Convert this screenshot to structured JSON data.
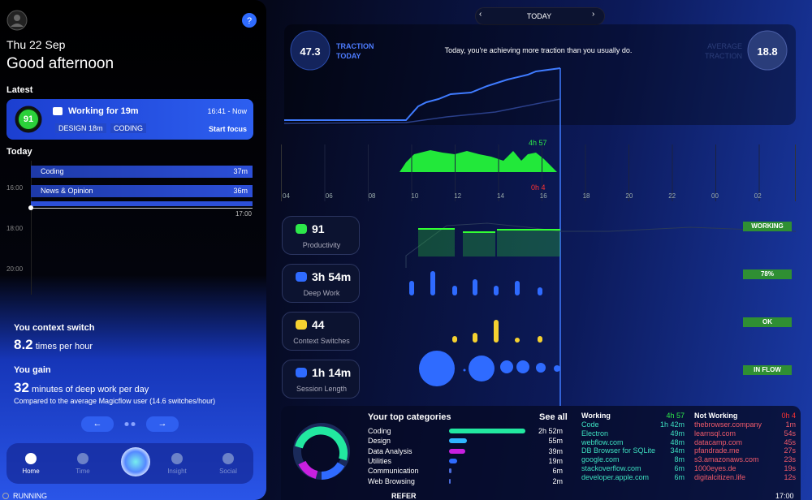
{
  "sidebar": {
    "date": "Thu 22 Sep",
    "greeting": "Good afternoon",
    "latest_heading": "Latest",
    "latest": {
      "score": "91",
      "title": "Working for 19m",
      "time": "16:41 - Now",
      "tags": [
        "DESIGN 18m",
        "CODING"
      ],
      "action": "Start focus"
    },
    "today_heading": "Today",
    "timeline": {
      "times": [
        "16:00",
        "18:00",
        "20:00"
      ],
      "now": "17:00",
      "blocks": [
        {
          "label": "Coding",
          "duration": "37m"
        },
        {
          "label": "News & Opinion",
          "duration": "36m"
        }
      ]
    },
    "insights": {
      "switch_heading": "You context switch",
      "switch_value": "8.2",
      "switch_unit": "times per hour",
      "gain_heading": "You gain",
      "gain_value": "32",
      "gain_unit": "minutes of deep work per day",
      "note": "Compared to the average Magicflow user (14.6 switches/hour)"
    },
    "nav": [
      "Home",
      "Time",
      "Insight",
      "Social"
    ],
    "status": "RUNNING"
  },
  "header": {
    "date_label": "TODAY"
  },
  "traction": {
    "today_value": "47.3",
    "today_label": "TRACTION TODAY",
    "message": "Today, you're achieving more traction than you usually do.",
    "average_label": "AVERAGE TRACTION",
    "average_value": "18.8"
  },
  "hours": {
    "labels": [
      "04",
      "06",
      "08",
      "10",
      "12",
      "14",
      "16",
      "18",
      "20",
      "22",
      "00",
      "02"
    ],
    "working": "4h 57",
    "not_working": "0h 4"
  },
  "metrics": [
    {
      "value": "91",
      "label": "Productivity",
      "status": "WORKING"
    },
    {
      "value": "3h 54m",
      "label": "Deep Work",
      "status": "78%"
    },
    {
      "value": "44",
      "label": "Context Switches",
      "status": "OK"
    },
    {
      "value": "1h 14m",
      "label": "Session Length",
      "status": "IN FLOW"
    }
  ],
  "categories": {
    "title": "Your top categories",
    "see_all": "See all",
    "rows": [
      [
        "Coding",
        "2h 52m"
      ],
      [
        "Design",
        "55m"
      ],
      [
        "Data Analysis",
        "39m"
      ],
      [
        "Utilities",
        "19m"
      ],
      [
        "Communication",
        "6m"
      ],
      [
        "Web Browsing",
        "2m"
      ]
    ]
  },
  "working": {
    "title": "Working",
    "total": "4h 57",
    "rows": [
      [
        "Code",
        "1h 42m"
      ],
      [
        "Electron",
        "49m"
      ],
      [
        "webflow.com",
        "48m"
      ],
      [
        "DB Browser for SQLite",
        "34m"
      ],
      [
        "google.com",
        "8m"
      ],
      [
        "stackoverflow.com",
        "6m"
      ],
      [
        "developer.apple.com",
        "6m"
      ]
    ]
  },
  "not_working": {
    "title": "Not Working",
    "total": "0h 4",
    "rows": [
      [
        "thebrowser.company",
        "1m"
      ],
      [
        "learnsql.com",
        "54s"
      ],
      [
        "datacamp.com",
        "45s"
      ],
      [
        "pfandrade.me",
        "27s"
      ],
      [
        "s3.amazonaws.com",
        "23s"
      ],
      [
        "1000eyes.de",
        "19s"
      ],
      [
        "digitalcitizen.life",
        "12s"
      ]
    ]
  },
  "footer": {
    "refer": "REFER",
    "clock": "17:00"
  }
}
